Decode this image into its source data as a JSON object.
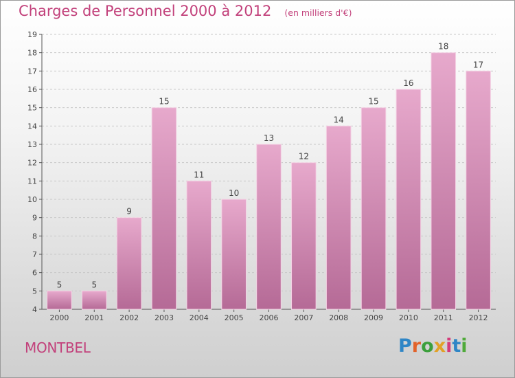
{
  "header": {
    "title": "Charges de Personnel 2000 à 2012",
    "subtitle": "(en milliers d'€)"
  },
  "footer": {
    "place": "MONTBEL",
    "logo": "Proxiti"
  },
  "colors": {
    "bar_light": "#e7a9cc",
    "bar_dark": "#b56a96",
    "title": "#c2417b",
    "grid": "#c8c8c8",
    "axis": "#555555"
  },
  "chart_data": {
    "type": "bar",
    "categories": [
      "2000",
      "2001",
      "2002",
      "2003",
      "2004",
      "2005",
      "2006",
      "2007",
      "2008",
      "2009",
      "2010",
      "2011",
      "2012"
    ],
    "values": [
      5,
      5,
      9,
      15,
      11,
      10,
      13,
      12,
      14,
      15,
      16,
      18,
      17
    ],
    "title": "Charges de Personnel 2000 à 2012",
    "subtitle": "(en milliers d'€)",
    "ylim": [
      4,
      19
    ],
    "yticks": [
      4,
      5,
      6,
      7,
      8,
      9,
      10,
      11,
      12,
      13,
      14,
      15,
      16,
      17,
      18,
      19
    ],
    "grid": true,
    "data_labels": true
  }
}
